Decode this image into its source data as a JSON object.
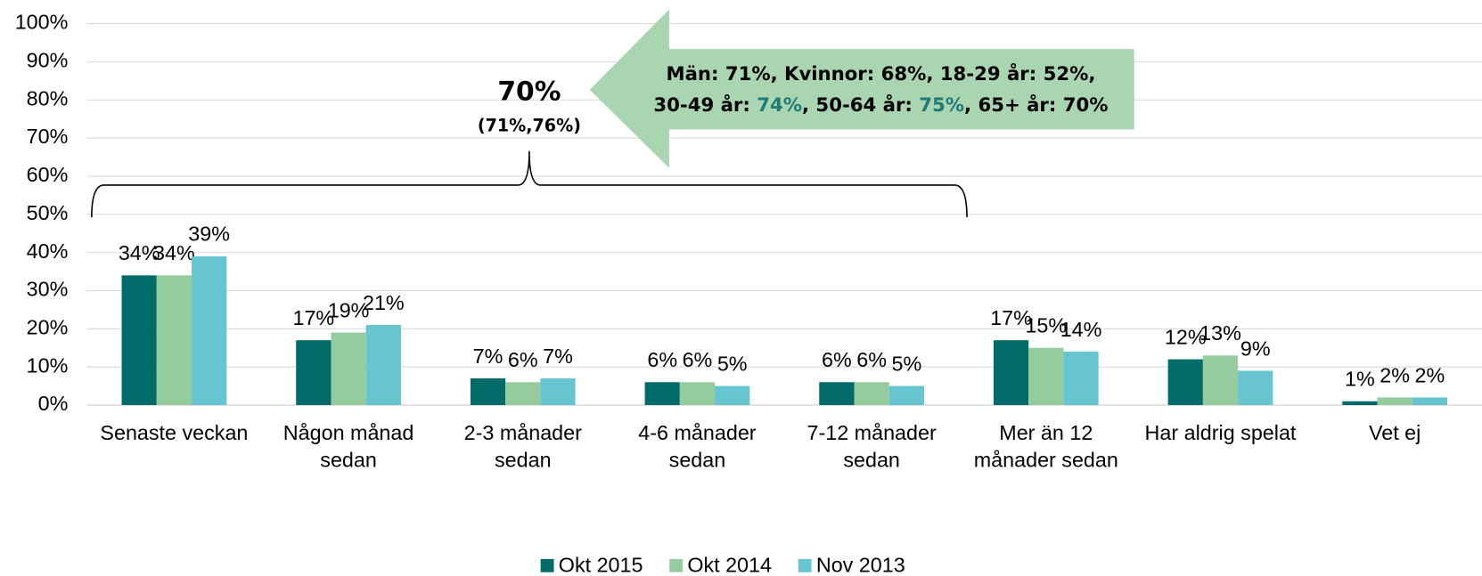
{
  "chart_data": {
    "type": "bar",
    "categories": [
      "Senaste veckan",
      "Någon månad\nsedan",
      "2-3 månader\nsedan",
      "4-6 månader\nsedan",
      "7-12 månader\nsedan",
      "Mer än 12\nmånader sedan",
      "Har aldrig spelat",
      "Vet ej"
    ],
    "series": [
      {
        "name": "Okt 2015",
        "color": "#006b68",
        "values": [
          34,
          17,
          7,
          6,
          6,
          17,
          12,
          1
        ],
        "value_labels": [
          "34%",
          "17%",
          "7%",
          "6%",
          "6%",
          "17%",
          "12%",
          "1%"
        ]
      },
      {
        "name": "Okt 2014",
        "color": "#95cc9e",
        "values": [
          34,
          19,
          6,
          6,
          6,
          15,
          13,
          2
        ],
        "value_labels": [
          "34%",
          "19%",
          "6%",
          "6%",
          "6%",
          "15%",
          "13%",
          "2%"
        ]
      },
      {
        "name": "Nov 2013",
        "color": "#66c5d0",
        "values": [
          39,
          21,
          7,
          5,
          5,
          14,
          9,
          2
        ],
        "value_labels": [
          "39%",
          "21%",
          "7%",
          "5%",
          "5%",
          "14%",
          "9%",
          "2%"
        ]
      }
    ],
    "ylim": [
      0,
      100
    ],
    "yticks": [
      {
        "value": 0,
        "label": "0%"
      },
      {
        "value": 10,
        "label": "10%"
      },
      {
        "value": 20,
        "label": "20%"
      },
      {
        "value": 30,
        "label": "30%"
      },
      {
        "value": 40,
        "label": "40%"
      },
      {
        "value": 50,
        "label": "50%"
      },
      {
        "value": 60,
        "label": "60%"
      },
      {
        "value": 70,
        "label": "70%"
      },
      {
        "value": 80,
        "label": "80%"
      },
      {
        "value": 90,
        "label": "90%"
      },
      {
        "value": 100,
        "label": "100%"
      }
    ],
    "grid": true,
    "legend": "bottom",
    "annotations": {
      "brace_main": "70%",
      "brace_sub": "(71%,76%)",
      "arrow_line1": "Män: 71%, Kvinnor: 68%, 18-29 år: 52%,",
      "arrow_line2": [
        {
          "text": "30-49 år: ",
          "color": "#000000"
        },
        {
          "text": "74%",
          "color": "#1f7a78"
        },
        {
          "text": ", 50-64 år: ",
          "color": "#000000"
        },
        {
          "text": "75%",
          "color": "#1f7a78"
        },
        {
          "text": ", 65+ år: 70%",
          "color": "#000000"
        }
      ]
    }
  }
}
